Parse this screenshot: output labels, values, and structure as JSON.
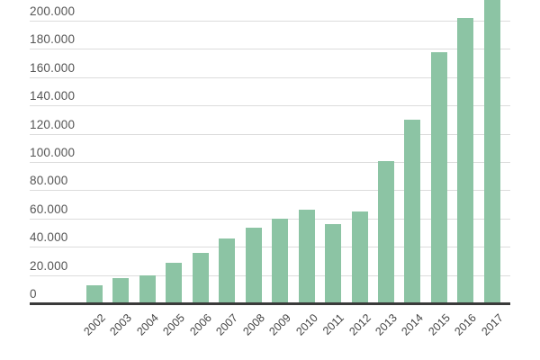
{
  "chart_data": {
    "type": "bar",
    "title": "",
    "xlabel": "",
    "ylabel": "",
    "categories": [
      "2002",
      "2003",
      "2004",
      "2005",
      "2006",
      "2007",
      "2008",
      "2009",
      "2010",
      "2011",
      "2012",
      "2013",
      "2014",
      "2015",
      "2016",
      "2017"
    ],
    "values": [
      12700,
      17800,
      19700,
      28700,
      35700,
      45900,
      53500,
      59700,
      66000,
      56200,
      65200,
      100600,
      130000,
      178000,
      202000,
      218000
    ],
    "ylim": [
      0,
      200000
    ],
    "yticks": [
      0,
      20000,
      40000,
      60000,
      80000,
      100000,
      120000,
      140000,
      160000,
      180000,
      200000
    ],
    "ytick_labels": [
      "0",
      "20.000",
      "40.000",
      "60.000",
      "80.000",
      "100.000",
      "120.000",
      "140.000",
      "160.000",
      "180.000",
      "200.000"
    ],
    "grid": true,
    "legend": null,
    "bar_color": "#8cc4a4",
    "notes": "2017 bar extends beyond the top of the visible plot area"
  }
}
